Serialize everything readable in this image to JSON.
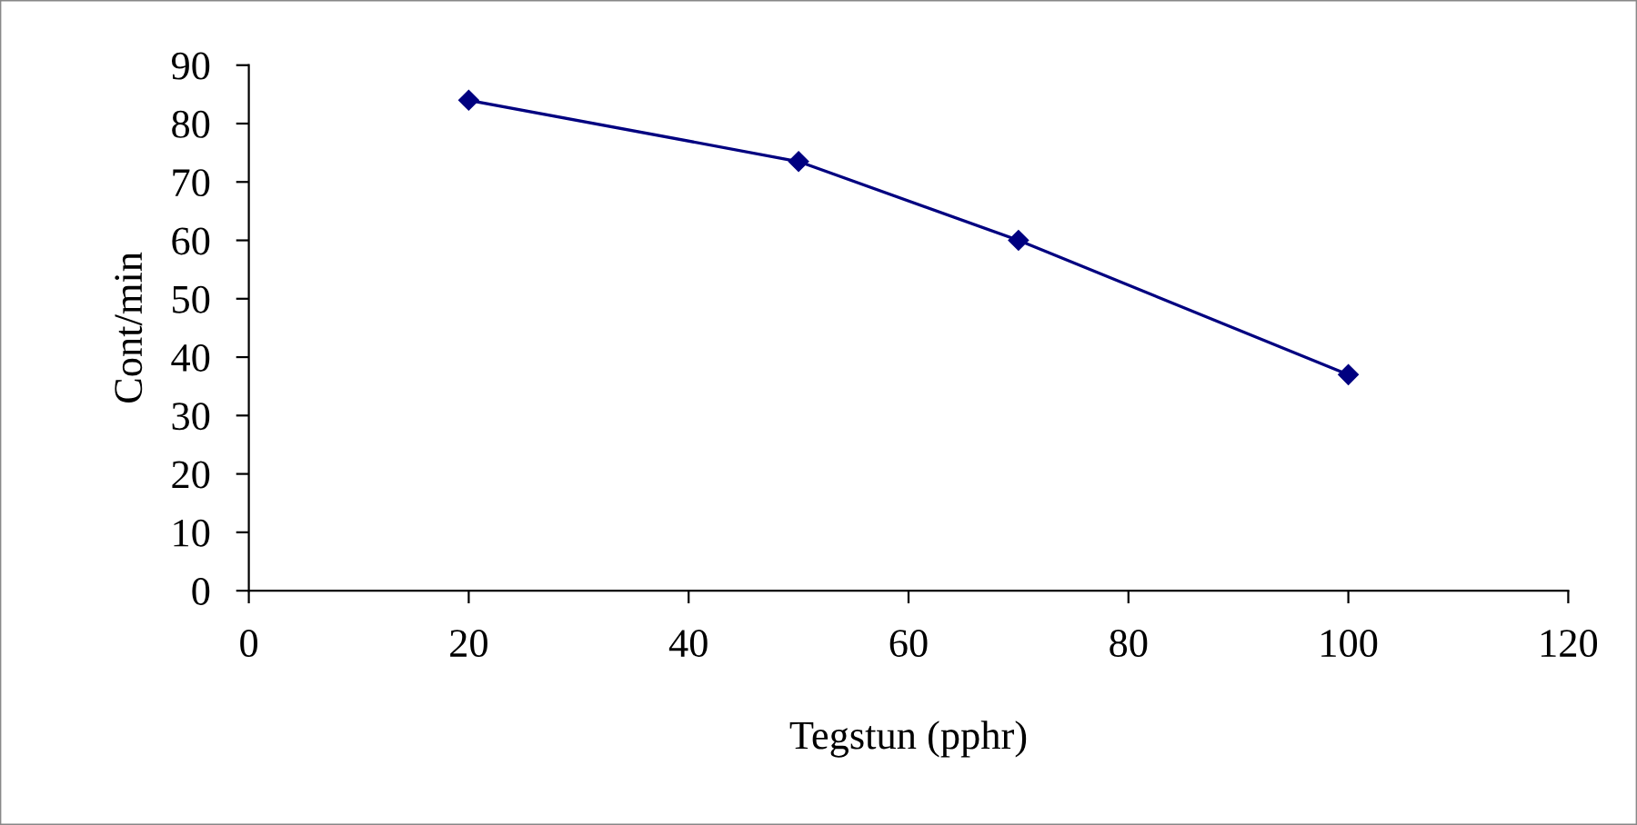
{
  "chart_data": {
    "type": "line",
    "xlabel": "Tegstun (pphr)",
    "ylabel": "Cont/min",
    "x": [
      20,
      50,
      70,
      100
    ],
    "series": [
      {
        "color": "#000080",
        "values": [
          84,
          73.5,
          60,
          37
        ]
      }
    ],
    "xlim": [
      0,
      120
    ],
    "xticks": [
      0,
      20,
      40,
      60,
      80,
      100,
      120
    ],
    "ylim": [
      0,
      90
    ],
    "yticks": [
      0,
      10,
      20,
      30,
      40,
      50,
      60,
      70,
      80,
      90
    ],
    "marker": "diamond",
    "line_style": "solid",
    "grid": false,
    "legend": false
  }
}
